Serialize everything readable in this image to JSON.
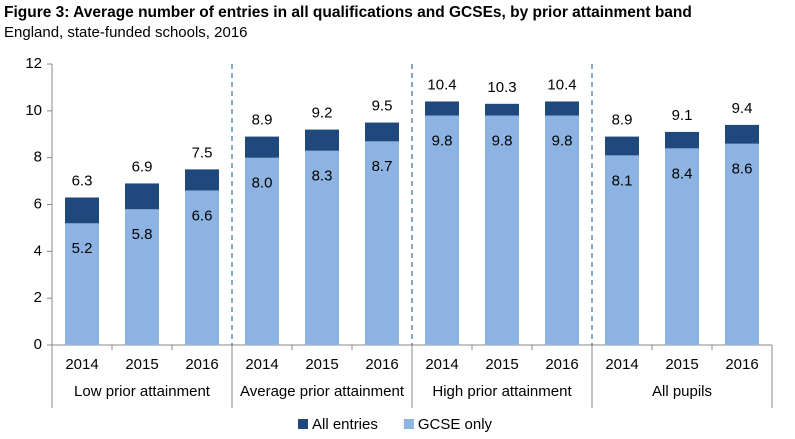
{
  "chart_data": {
    "type": "overlap_bar",
    "title": "Figure 3: Average number of entries in all qualifications and GCSEs, by prior attainment band",
    "subtitle": "England, state-funded schools, 2016",
    "categories": [
      "2014",
      "2015",
      "2016",
      "2014",
      "2015",
      "2016",
      "2014",
      "2015",
      "2016",
      "2014",
      "2015",
      "2016"
    ],
    "groups": [
      "Low prior attainment",
      "Average prior attainment",
      "High prior attainment",
      "All pupils"
    ],
    "series": [
      {
        "name": "All entries",
        "color": "#1f497d",
        "values": [
          6.3,
          6.9,
          7.5,
          8.9,
          9.2,
          9.5,
          10.4,
          10.3,
          10.4,
          8.9,
          9.1,
          9.4
        ]
      },
      {
        "name": "GCSE only",
        "color": "#8db3e2",
        "values": [
          5.2,
          5.8,
          6.6,
          8,
          8.3,
          8.7,
          9.8,
          9.8,
          9.8,
          8.1,
          8.4,
          8.6
        ],
        "value_labels": [
          "5.2",
          "5.8",
          "6.6",
          "8.0",
          "8.3",
          "8.7",
          "9.8",
          "9.8",
          "9.8",
          "8.1",
          "8.4",
          "8.6"
        ]
      }
    ],
    "ylim": [
      0,
      12
    ],
    "yticks": [
      0,
      2,
      4,
      6,
      8,
      10,
      12
    ],
    "legend": "bottom"
  }
}
